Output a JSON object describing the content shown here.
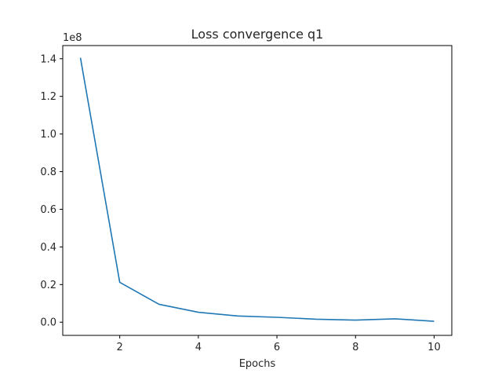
{
  "chart_data": {
    "type": "line",
    "title": "Loss convergence q1",
    "xlabel": "Epochs",
    "ylabel": "",
    "y_offset_label": "1e8",
    "xlim": [
      0.55,
      10.45
    ],
    "ylim": [
      -0.07,
      1.47
    ],
    "x_ticks": [
      2,
      4,
      6,
      8,
      10
    ],
    "y_ticks": [
      0.0,
      0.2,
      0.4,
      0.6,
      0.8,
      1.0,
      1.2,
      1.4
    ],
    "y_tick_labels": [
      "0.0",
      "0.2",
      "0.4",
      "0.6",
      "0.8",
      "1.0",
      "1.2",
      "1.4"
    ],
    "grid": false,
    "line_color": "#1f77b4",
    "series": [
      {
        "x": [
          1,
          2,
          3,
          4,
          5,
          6,
          7,
          8,
          9,
          10
        ],
        "values": [
          1.405,
          0.212,
          0.095,
          0.053,
          0.033,
          0.026,
          0.016,
          0.011,
          0.018,
          0.005
        ]
      }
    ]
  }
}
